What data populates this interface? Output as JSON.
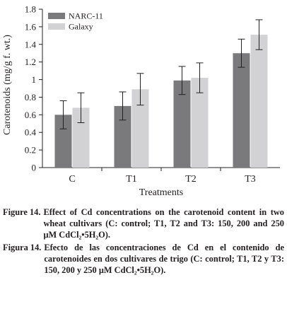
{
  "chart_data": {
    "type": "bar",
    "categories": [
      "C",
      "T1",
      "T2",
      "T3"
    ],
    "series": [
      {
        "name": "NARC-11",
        "color": "#7a7a7c",
        "values": [
          0.6,
          0.7,
          0.99,
          1.3
        ],
        "errors": [
          0.16,
          0.16,
          0.16,
          0.16
        ]
      },
      {
        "name": "Galaxy",
        "color": "#d2d2d4",
        "values": [
          0.68,
          0.89,
          1.02,
          1.51
        ],
        "errors": [
          0.17,
          0.18,
          0.17,
          0.17
        ]
      }
    ],
    "xlabel": "Treatments",
    "ylabel": "Carotenoids (mg/g f. wt.)",
    "ylim": [
      0,
      1.8
    ],
    "yticks": [
      "0",
      "0.2",
      "0.4",
      "0.6",
      "0.8",
      "1",
      "1.2",
      "1.4",
      "1.6",
      "1.8"
    ],
    "grid": false,
    "legend_position": "top-left"
  },
  "captions": [
    {
      "label": "Figure 14.",
      "text": "Effect of Cd concentrations on the carotenoid content in two wheat cultivars (C: control; T1, T2 and T3: 150, 200 and 250 μM CdCl₂•5H₂O)."
    },
    {
      "label": "Figura 14.",
      "text": "Efecto de las concentraciones de Cd en el contenido de carotenoides en dos cultivares de trigo (C: control; T1, T2 y T3: 150, 200 y 250 μM CdCl₂•5H₂O)."
    }
  ]
}
